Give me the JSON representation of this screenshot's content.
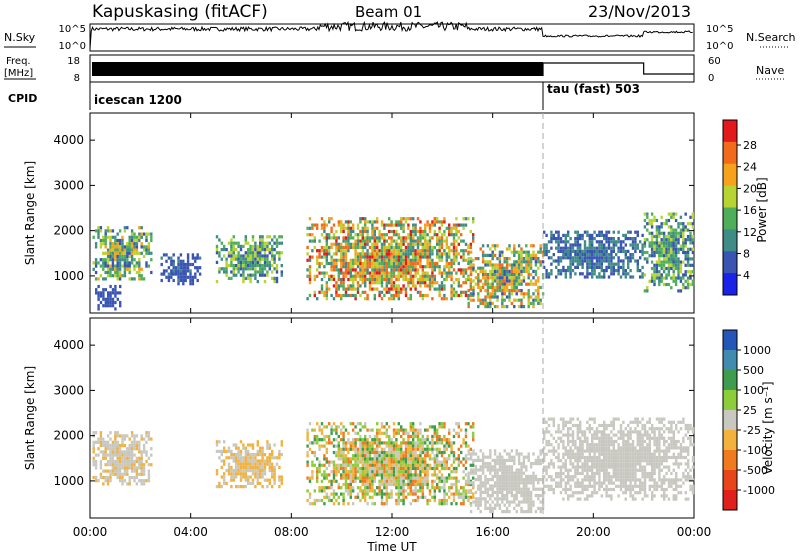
{
  "header": {
    "title": "Kapuskasing (fitACF)",
    "beam": "Beam 01",
    "date": "23/Nov/2013"
  },
  "panels": {
    "nsky": {
      "label": "N.Sky",
      "left_ticks": [
        "10^5",
        "10^0"
      ],
      "right_label": "N.Search",
      "right_ticks": [
        "10^5",
        "10^0"
      ]
    },
    "freq": {
      "label_top": "Freq.",
      "label_bottom": "[MHz]",
      "left_ticks": [
        "18",
        "8"
      ],
      "right_label": "Nave",
      "right_ticks": [
        "60",
        "0"
      ]
    },
    "cpid": {
      "label": "CPID",
      "segments": [
        {
          "name": "icescan 1200",
          "start_hour": 0,
          "end_hour": 18
        },
        {
          "name": "tau (fast) 503",
          "start_hour": 18,
          "end_hour": 24
        }
      ]
    }
  },
  "x_axis": {
    "label": "Time UT",
    "ticks": [
      "00:00",
      "04:00",
      "08:00",
      "12:00",
      "16:00",
      "20:00",
      "00:00"
    ],
    "tick_hours": [
      0,
      4,
      8,
      12,
      16,
      20,
      24
    ]
  },
  "power_colorbar": {
    "label": "Power [dB]",
    "ticks": [
      "28",
      "24",
      "20",
      "16",
      "12",
      "8",
      "4"
    ],
    "colors": [
      "#e31a1c",
      "#f26a1b",
      "#f6a21d",
      "#b8d432",
      "#4fae5a",
      "#3f8c87",
      "#3954b3",
      "#1a22e8"
    ]
  },
  "velocity_colorbar": {
    "label": "Velocity [m s⁻¹]",
    "ticks": [
      "1000",
      "500",
      "100",
      "25",
      "-25",
      "-100",
      "-500",
      "-1000"
    ],
    "colors": [
      "#2456b8",
      "#3f8cb0",
      "#3d9c4d",
      "#8ccd3a",
      "#c8c8c0",
      "#f2b23c",
      "#f07a1e",
      "#e84518",
      "#e0201a"
    ]
  },
  "chart_data": [
    {
      "type": "heatmap",
      "title": "Power",
      "ylabel": "Slant Range [km]",
      "xlabel": "Time UT",
      "xlim": [
        0,
        24
      ],
      "ylim": [
        180,
        4600
      ],
      "y_ticks": [
        1000,
        2000,
        3000,
        4000
      ],
      "colorbar": "Power [dB]",
      "scatter_regions": [
        {
          "t0": 0.1,
          "t1": 2.4,
          "r0": 900,
          "r1": 2100,
          "v_min": 6,
          "v_max": 22
        },
        {
          "t0": 0.2,
          "t1": 1.2,
          "r0": 300,
          "r1": 800,
          "v_min": 4,
          "v_max": 8
        },
        {
          "t0": 2.8,
          "t1": 4.4,
          "r0": 800,
          "r1": 1500,
          "v_min": 4,
          "v_max": 9
        },
        {
          "t0": 5.0,
          "t1": 7.6,
          "r0": 900,
          "r1": 1900,
          "v_min": 6,
          "v_max": 20
        },
        {
          "t0": 8.6,
          "t1": 15.2,
          "r0": 500,
          "r1": 2300,
          "v_min": 8,
          "v_max": 30
        },
        {
          "t0": 15.0,
          "t1": 18.0,
          "r0": 300,
          "r1": 1700,
          "v_min": 6,
          "v_max": 28
        },
        {
          "t0": 18.0,
          "t1": 22.0,
          "r0": 1000,
          "r1": 2000,
          "v_min": 4,
          "v_max": 12
        },
        {
          "t0": 22.0,
          "t1": 24.0,
          "r0": 700,
          "r1": 2400,
          "v_min": 4,
          "v_max": 20
        }
      ]
    },
    {
      "type": "heatmap",
      "title": "Velocity",
      "ylabel": "Slant Range [km]",
      "xlabel": "Time UT",
      "xlim": [
        0,
        24
      ],
      "ylim": [
        180,
        4600
      ],
      "y_ticks": [
        1000,
        2000,
        3000,
        4000
      ],
      "colorbar": "Velocity [m s⁻¹]",
      "scatter_regions": [
        {
          "t0": 0.1,
          "t1": 2.4,
          "r0": 900,
          "r1": 2100,
          "v_min": -200,
          "v_max": 25
        },
        {
          "t0": 5.0,
          "t1": 7.6,
          "r0": 900,
          "r1": 1900,
          "v_min": -300,
          "v_max": 25
        },
        {
          "t0": 8.6,
          "t1": 15.2,
          "r0": 500,
          "r1": 2300,
          "v_min": -600,
          "v_max": 600
        },
        {
          "t0": 15.0,
          "t1": 18.0,
          "r0": 300,
          "r1": 1700,
          "v_min": -25,
          "v_max": 25
        },
        {
          "t0": 18.0,
          "t1": 24.0,
          "r0": 600,
          "r1": 2400,
          "v_min": -25,
          "v_max": 25
        }
      ]
    }
  ]
}
